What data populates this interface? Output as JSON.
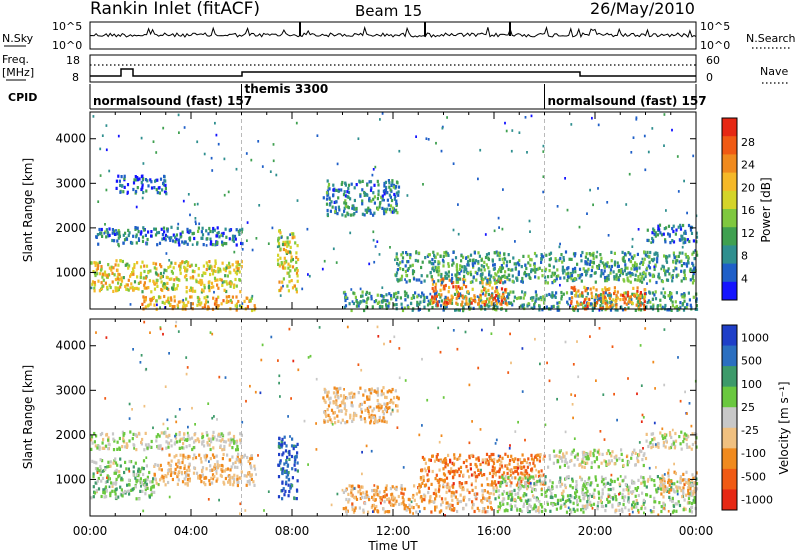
{
  "header": {
    "station": "Rankin Inlet (fitACF)",
    "beam": "Beam 15",
    "date": "26/May/2010"
  },
  "nsky_panel": {
    "label": "N.Sky",
    "ticks_left": [
      "10^5",
      "10^0"
    ],
    "ticks_right": [
      "10^5",
      "10^0"
    ],
    "right_label": "N.Search"
  },
  "freq_panel": {
    "label_line1": "Freq.",
    "label_line2": "[MHz]",
    "ticks_left": [
      "18",
      "8"
    ],
    "ticks_right": [
      "60",
      "0"
    ],
    "right_label": "Nave"
  },
  "cpid_panel": {
    "label": "CPID",
    "modes": [
      {
        "text": "normalsound (fast) 157",
        "start_hour": 0,
        "end_hour": 6
      },
      {
        "text": "themis 3300",
        "start_hour": 6,
        "end_hour": 18
      },
      {
        "text": "normalsound (fast) 157",
        "start_hour": 18,
        "end_hour": 24
      }
    ]
  },
  "x_axis": {
    "label": "Time UT",
    "ticks": [
      "00:00",
      "04:00",
      "08:00",
      "12:00",
      "16:00",
      "20:00",
      "00:00"
    ]
  },
  "chart_data": [
    {
      "type": "heatmap",
      "panel": "power",
      "ylabel": "Slant Range [km]",
      "y_ticks": [
        "1000",
        "2000",
        "3000",
        "4000"
      ],
      "ylim": [
        180,
        4600
      ],
      "xlim_hours": [
        0,
        24
      ],
      "colorbar": {
        "label": "Power [dB]",
        "ticks": [
          "4",
          "8",
          "12",
          "16",
          "20",
          "24",
          "28"
        ],
        "range": [
          0,
          32
        ],
        "colors": [
          "#1414ff",
          "#1f5fc8",
          "#2f8f8f",
          "#3fa050",
          "#7fc83f",
          "#d4d429",
          "#f5b828",
          "#f08a1e",
          "#f05a14",
          "#e62814"
        ]
      },
      "bands": [
        {
          "t0": 0.0,
          "t1": 6.0,
          "r0": 600,
          "r1": 1300,
          "mean": 18
        },
        {
          "t0": 0.2,
          "t1": 6.0,
          "r0": 1650,
          "r1": 2050,
          "mean": 7
        },
        {
          "t0": 1.0,
          "t1": 3.0,
          "r0": 2800,
          "r1": 3200,
          "mean": 5
        },
        {
          "t0": 2.0,
          "t1": 6.5,
          "r0": 180,
          "r1": 500,
          "mean": 20
        },
        {
          "t0": 7.4,
          "t1": 8.2,
          "r0": 600,
          "r1": 2000,
          "mean": 18
        },
        {
          "t0": 9.2,
          "t1": 12.2,
          "r0": 2300,
          "r1": 3100,
          "mean": 8
        },
        {
          "t0": 10.0,
          "t1": 24.0,
          "r0": 180,
          "r1": 600,
          "mean": 10
        },
        {
          "t0": 13.5,
          "t1": 16.5,
          "r0": 300,
          "r1": 900,
          "mean": 24
        },
        {
          "t0": 12.0,
          "t1": 24.0,
          "r0": 800,
          "r1": 1500,
          "mean": 10
        },
        {
          "t0": 19.0,
          "t1": 22.0,
          "r0": 200,
          "r1": 700,
          "mean": 24
        },
        {
          "t0": 22.0,
          "t1": 24.0,
          "r0": 1700,
          "r1": 2100,
          "mean": 6
        }
      ]
    },
    {
      "type": "heatmap",
      "panel": "velocity",
      "ylabel": "Slant Range [km]",
      "y_ticks": [
        "1000",
        "2000",
        "3000",
        "4000"
      ],
      "ylim": [
        180,
        4600
      ],
      "xlim_hours": [
        0,
        24
      ],
      "colorbar": {
        "label": "Velocity [m s⁻¹]",
        "ticks": [
          "1000",
          "500",
          "100",
          "25",
          "-25",
          "-100",
          "-500",
          "-1000"
        ],
        "range": [
          -1200,
          1200
        ],
        "colors": [
          "#1f3fc8",
          "#2b6fc0",
          "#3d9a6a",
          "#6ac83f",
          "#c8c8c8",
          "#f0c080",
          "#f08a1e",
          "#f05a14",
          "#e62814"
        ]
      },
      "bands": [
        {
          "t0": 0.0,
          "t1": 6.0,
          "r0": 1700,
          "r1": 2100,
          "mean": 0
        },
        {
          "t0": 0.0,
          "t1": 2.5,
          "r0": 600,
          "r1": 1500,
          "mean": 200
        },
        {
          "t0": 2.5,
          "t1": 6.5,
          "r0": 900,
          "r1": 1600,
          "mean": -300
        },
        {
          "t0": 7.4,
          "t1": 8.2,
          "r0": 600,
          "r1": 2000,
          "mean": 900
        },
        {
          "t0": 9.2,
          "t1": 12.2,
          "r0": 2300,
          "r1": 3100,
          "mean": -300
        },
        {
          "t0": 10.0,
          "t1": 16.0,
          "r0": 300,
          "r1": 900,
          "mean": -400
        },
        {
          "t0": 13.0,
          "t1": 18.0,
          "r0": 900,
          "r1": 1600,
          "mean": -600
        },
        {
          "t0": 16.0,
          "t1": 24.0,
          "r0": 300,
          "r1": 1100,
          "mean": 150
        },
        {
          "t0": 18.0,
          "t1": 22.0,
          "r0": 1300,
          "r1": 1700,
          "mean": 0
        },
        {
          "t0": 22.0,
          "t1": 24.0,
          "r0": 1700,
          "r1": 2100,
          "mean": 0
        },
        {
          "t0": 22.5,
          "t1": 24.0,
          "r0": 700,
          "r1": 1200,
          "mean": -300
        }
      ]
    }
  ]
}
